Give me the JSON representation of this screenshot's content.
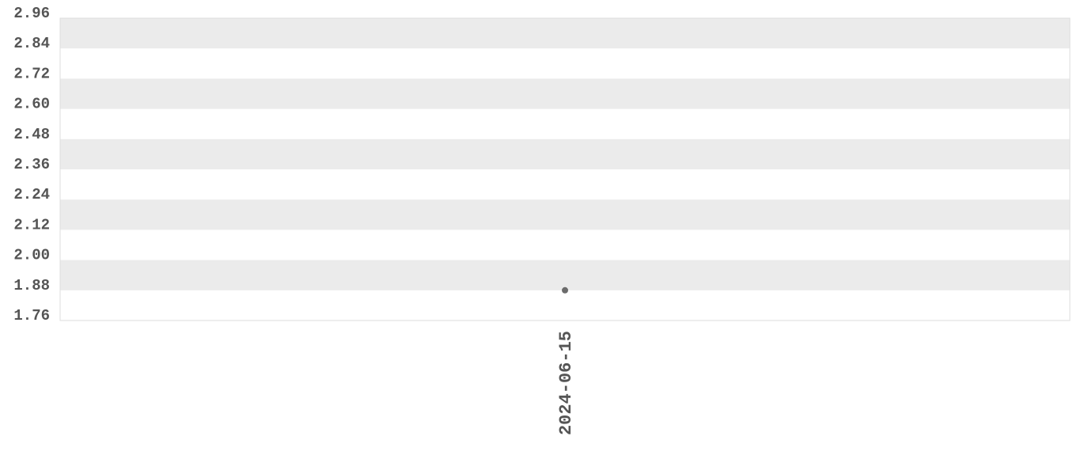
{
  "chart_data": {
    "type": "scatter",
    "title": "",
    "xlabel": "",
    "ylabel": "",
    "x_tick_labels": [
      "2024-06-15"
    ],
    "y_tick_labels": [
      "2.96",
      "2.84",
      "2.72",
      "2.60",
      "2.48",
      "2.36",
      "2.24",
      "2.12",
      "2.00",
      "1.88",
      "1.76"
    ],
    "ylim": [
      1.76,
      2.96
    ],
    "grid": "alternating horizontal bands",
    "points": [
      {
        "x": "2024-06-15",
        "y": 1.88
      }
    ],
    "colors": {
      "point": "#6b6b6b",
      "band": "#ebebeb",
      "text": "#555555",
      "border": "#dddddd"
    }
  }
}
